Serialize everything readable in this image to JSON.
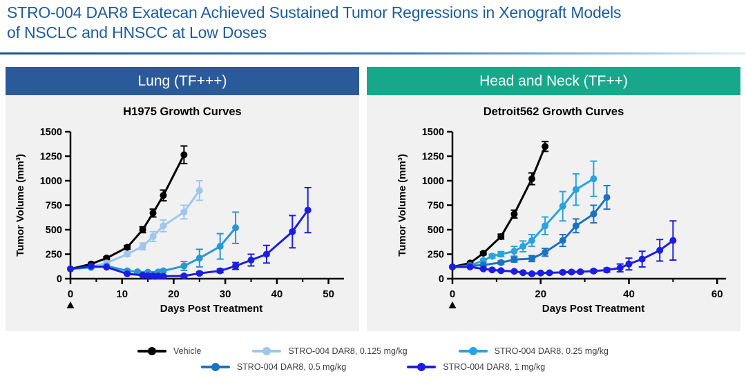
{
  "slide": {
    "title_line1": "STRO-004 DAR8 Exatecan Achieved Sustained Tumor Regressions in Xenograft Models",
    "title_line2": "of NSCLC and HNSCC at Low Doses",
    "title_color": "#1d5c9c"
  },
  "colors": {
    "vehicle": "#000000",
    "dose_0125": "#9ec6ee",
    "dose_025": "#29a3dc",
    "dose_05": "#1c72c2",
    "dose_1": "#1d1de0",
    "lung_header_bg": "#2b5a9b",
    "hn_header_bg": "#17a88c",
    "panel_bg": "#f1f1f2"
  },
  "legend": {
    "rows": [
      [
        {
          "label": "Vehicle",
          "color": "#000000"
        },
        {
          "label": "STRO-004 DAR8, 0.125 mg/kg",
          "color": "#9ec6ee"
        },
        {
          "label": "STRO-004 DAR8, 0.25 mg/kg",
          "color": "#29a3dc"
        }
      ],
      [
        {
          "label": "STRO-004 DAR8, 0.5 mg/kg",
          "color": "#1c72c2"
        },
        {
          "label": "STRO-004 DAR8, 1 mg/kg",
          "color": "#1d1de0"
        }
      ]
    ]
  },
  "chart_data": [
    {
      "id": "h1975",
      "type": "line",
      "panel_label": "Lung (TF+++)",
      "panel_color": "#2b5a9b",
      "title": "H1975 Growth Curves",
      "xlabel": "Days Post Treatment",
      "ylabel": "Tumor Volume (mm³)",
      "xlim": [
        0,
        53
      ],
      "ylim": [
        0,
        1500
      ],
      "xticks": [
        0,
        10,
        20,
        30,
        40,
        50
      ],
      "xminor": [
        5,
        15,
        25,
        35,
        45
      ],
      "yticks": [
        0,
        250,
        500,
        750,
        1000,
        1250,
        1500
      ],
      "treatment_marker_day": 0,
      "series": [
        {
          "name": "Vehicle",
          "color": "#000000",
          "points": [
            [
              0,
              100,
              0
            ],
            [
              4,
              150,
              0
            ],
            [
              7,
              210,
              15
            ],
            [
              11,
              320,
              20
            ],
            [
              14,
              500,
              30
            ],
            [
              16,
              670,
              40
            ],
            [
              18,
              850,
              55
            ],
            [
              22,
              1265,
              90
            ]
          ]
        },
        {
          "name": "STRO-004 DAR8, 0.125 mg/kg",
          "color": "#9ec6ee",
          "points": [
            [
              0,
              100,
              0
            ],
            [
              4,
              120,
              0
            ],
            [
              7,
              160,
              12
            ],
            [
              11,
              250,
              20
            ],
            [
              14,
              330,
              35
            ],
            [
              16,
              430,
              50
            ],
            [
              18,
              540,
              60
            ],
            [
              22,
              680,
              70
            ],
            [
              25,
              900,
              100
            ]
          ]
        },
        {
          "name": "STRO-004 DAR8, 0.25 mg/kg",
          "color": "#2997d4",
          "points": [
            [
              0,
              100,
              0
            ],
            [
              4,
              115,
              0
            ],
            [
              7,
              130,
              0
            ],
            [
              11,
              80,
              12
            ],
            [
              13,
              70,
              10
            ],
            [
              15,
              66,
              10
            ],
            [
              17,
              68,
              10
            ],
            [
              18,
              80,
              14
            ],
            [
              22,
              130,
              45
            ],
            [
              25,
              210,
              90
            ],
            [
              29,
              330,
              130
            ],
            [
              32,
              520,
              160
            ]
          ]
        },
        {
          "name": "STRO-004 DAR8, 1 mg/kg",
          "color": "#1d1de0",
          "points": [
            [
              0,
              100,
              0
            ],
            [
              4,
              128,
              0
            ],
            [
              7,
              118,
              0
            ],
            [
              11,
              50,
              8
            ],
            [
              14,
              35,
              8
            ],
            [
              15,
              30,
              8
            ],
            [
              16,
              28,
              8
            ],
            [
              17,
              27,
              8
            ],
            [
              18,
              25,
              8
            ],
            [
              22,
              28,
              10
            ],
            [
              25,
              55,
              14
            ],
            [
              29,
              80,
              18
            ],
            [
              32,
              130,
              35
            ],
            [
              35,
              190,
              60
            ],
            [
              38,
              250,
              90
            ],
            [
              43,
              480,
              165
            ],
            [
              46,
              700,
              230
            ]
          ]
        }
      ]
    },
    {
      "id": "detroit562",
      "type": "line",
      "panel_label": "Head and Neck (TF++)",
      "panel_color": "#17a88c",
      "title": "Detroit562 Growth Curves",
      "xlabel": "Days Post Treatment",
      "ylabel": "Tumor Volume (mm³)",
      "xlim": [
        0,
        62
      ],
      "ylim": [
        0,
        1500
      ],
      "xticks": [
        0,
        20,
        40,
        60
      ],
      "xminor": [
        10,
        30,
        50
      ],
      "yticks": [
        0,
        250,
        500,
        750,
        1000,
        1250,
        1500
      ],
      "treatment_marker_day": 0,
      "series": [
        {
          "name": "Vehicle",
          "color": "#000000",
          "points": [
            [
              0,
              120,
              0
            ],
            [
              4,
              160,
              0
            ],
            [
              7,
              260,
              15
            ],
            [
              11,
              430,
              25
            ],
            [
              14,
              660,
              40
            ],
            [
              18,
              1020,
              60
            ],
            [
              21,
              1350,
              50
            ]
          ]
        },
        {
          "name": "STRO-004 DAR8, 0.25 mg/kg",
          "color": "#29a3dc",
          "points": [
            [
              0,
              120,
              0
            ],
            [
              4,
              135,
              0
            ],
            [
              7,
              185,
              15
            ],
            [
              9,
              230,
              20
            ],
            [
              11,
              250,
              25
            ],
            [
              14,
              280,
              50
            ],
            [
              16,
              330,
              55
            ],
            [
              18,
              390,
              60
            ],
            [
              21,
              540,
              90
            ],
            [
              25,
              740,
              150
            ],
            [
              28,
              910,
              160
            ],
            [
              32,
              1020,
              180
            ]
          ]
        },
        {
          "name": "STRO-004 DAR8, 0.5 mg/kg",
          "color": "#1c72c2",
          "points": [
            [
              0,
              120,
              0
            ],
            [
              4,
              130,
              0
            ],
            [
              7,
              140,
              10
            ],
            [
              11,
              165,
              15
            ],
            [
              14,
              195,
              25
            ],
            [
              18,
              205,
              30
            ],
            [
              21,
              270,
              40
            ],
            [
              25,
              390,
              60
            ],
            [
              28,
              540,
              70
            ],
            [
              32,
              660,
              90
            ],
            [
              35,
              830,
              120
            ]
          ]
        },
        {
          "name": "STRO-004 DAR8, 1 mg/kg",
          "color": "#1d1de0",
          "points": [
            [
              0,
              120,
              0
            ],
            [
              4,
              120,
              0
            ],
            [
              7,
              100,
              10
            ],
            [
              9,
              90,
              10
            ],
            [
              11,
              82,
              10
            ],
            [
              14,
              75,
              10
            ],
            [
              16,
              62,
              10
            ],
            [
              18,
              50,
              10
            ],
            [
              20,
              58,
              10
            ],
            [
              22,
              60,
              10
            ],
            [
              25,
              65,
              12
            ],
            [
              27,
              68,
              12
            ],
            [
              29,
              70,
              12
            ],
            [
              32,
              78,
              15
            ],
            [
              35,
              88,
              20
            ],
            [
              38,
              110,
              40
            ],
            [
              40,
              150,
              60
            ],
            [
              43,
              200,
              80
            ],
            [
              47,
              290,
              110
            ],
            [
              50,
              390,
              200
            ]
          ]
        }
      ]
    }
  ]
}
